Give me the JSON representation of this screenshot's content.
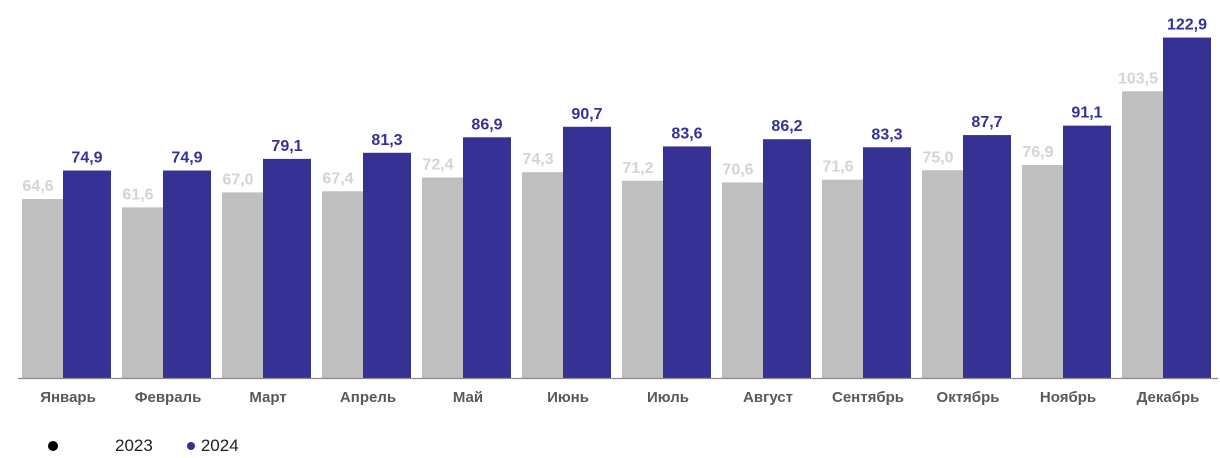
{
  "chart_data": {
    "type": "bar",
    "categories": [
      "Январь",
      "Февраль",
      "Март",
      "Апрель",
      "Май",
      "Июнь",
      "Июль",
      "Август",
      "Сентябрь",
      "Октябрь",
      "Ноябрь",
      "Декабрь"
    ],
    "series": [
      {
        "name": "2023",
        "color": "#bfbfbf",
        "label_color": "#d4d4d4",
        "values": [
          64.6,
          61.6,
          67.0,
          67.4,
          72.4,
          74.3,
          71.2,
          70.6,
          71.6,
          75.0,
          76.9,
          103.5
        ],
        "labels": [
          "64,6",
          "61,6",
          "67,0",
          "67,4",
          "72,4",
          "74,3",
          "71,2",
          "70,6",
          "71,6",
          "75,0",
          "76,9",
          "103,5"
        ]
      },
      {
        "name": "2024",
        "color": "#363195",
        "label_color": "#363195",
        "values": [
          74.9,
          74.9,
          79.1,
          81.3,
          86.9,
          90.7,
          83.6,
          86.2,
          83.3,
          87.7,
          91.1,
          122.9
        ],
        "labels": [
          "74,9",
          "74,9",
          "79,1",
          "81,3",
          "86,9",
          "90,7",
          "83,6",
          "86,2",
          "83,3",
          "87,7",
          "91,1",
          "122,9"
        ]
      }
    ],
    "title": "",
    "xlabel": "",
    "ylabel": "",
    "ylim": [
      0,
      130
    ],
    "grid": false,
    "legend": "bottom-left",
    "legend_marker_colors": [
      "#000000",
      "#363195"
    ]
  }
}
